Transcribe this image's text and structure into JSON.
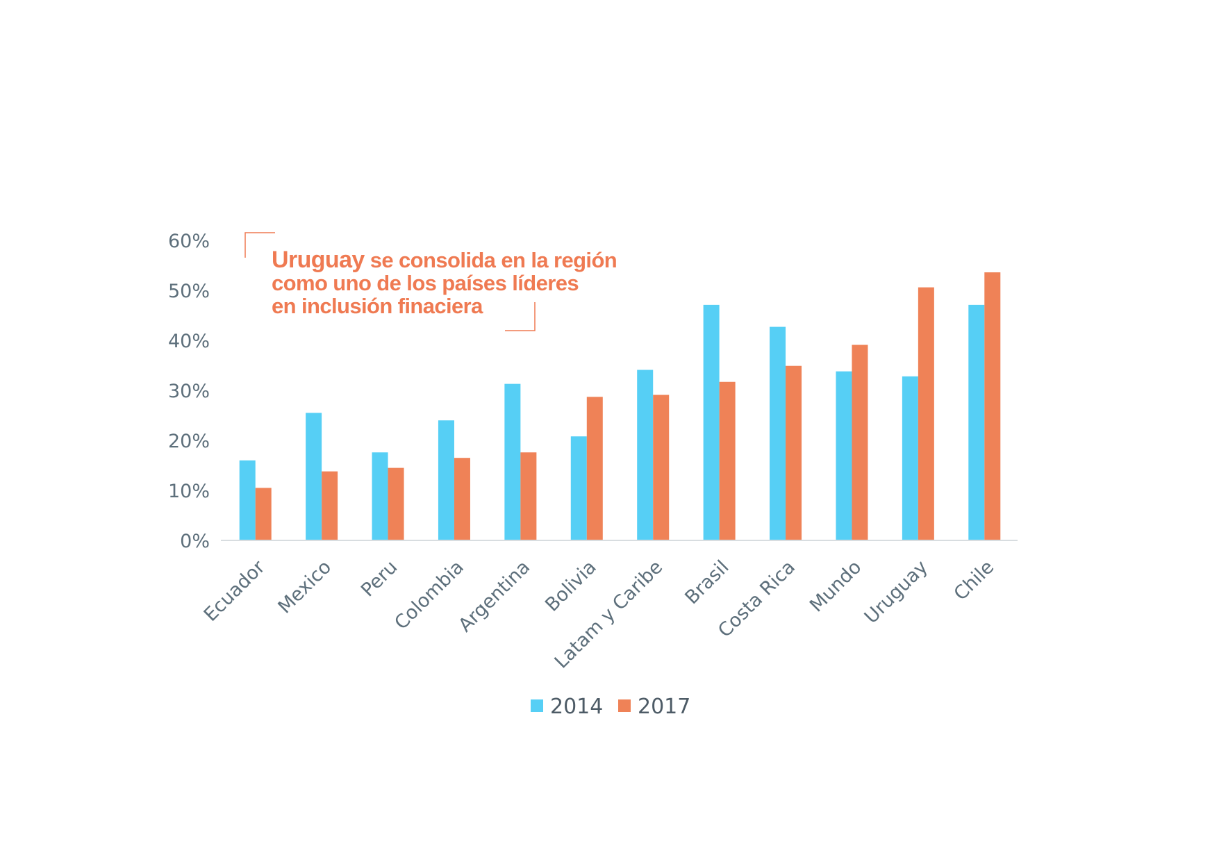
{
  "chart_data": {
    "type": "bar",
    "categories": [
      "Ecuador",
      "Mexico",
      "Peru",
      "Colombia",
      "Argentina",
      "Bolivia",
      "Latam y Caribe",
      "Brasil",
      "Costa Rica",
      "Mundo",
      "Uruguay",
      "Chile"
    ],
    "series": [
      {
        "name": "2014",
        "color": "#56cff5",
        "values": [
          16,
          25.5,
          17.6,
          24,
          31.3,
          20.8,
          34.1,
          47.1,
          42.7,
          33.8,
          32.8,
          47.1
        ]
      },
      {
        "name": "2017",
        "color": "#ef8257",
        "values": [
          10.5,
          13.8,
          14.5,
          16.5,
          17.6,
          28.7,
          29.1,
          31.7,
          34.9,
          39.1,
          50.6,
          53.6
        ]
      }
    ],
    "yticks": [
      "0%",
      "10%",
      "20%",
      "30%",
      "40%",
      "50%",
      "60%"
    ],
    "ylim": [
      0,
      60
    ],
    "legend_position": "bottom",
    "grid": false
  },
  "headline": {
    "highlight": "Uruguay",
    "line1_rest": " se consolida en la región",
    "line2": "como uno de los países líderes",
    "line3": "en inclusión finaciera"
  }
}
